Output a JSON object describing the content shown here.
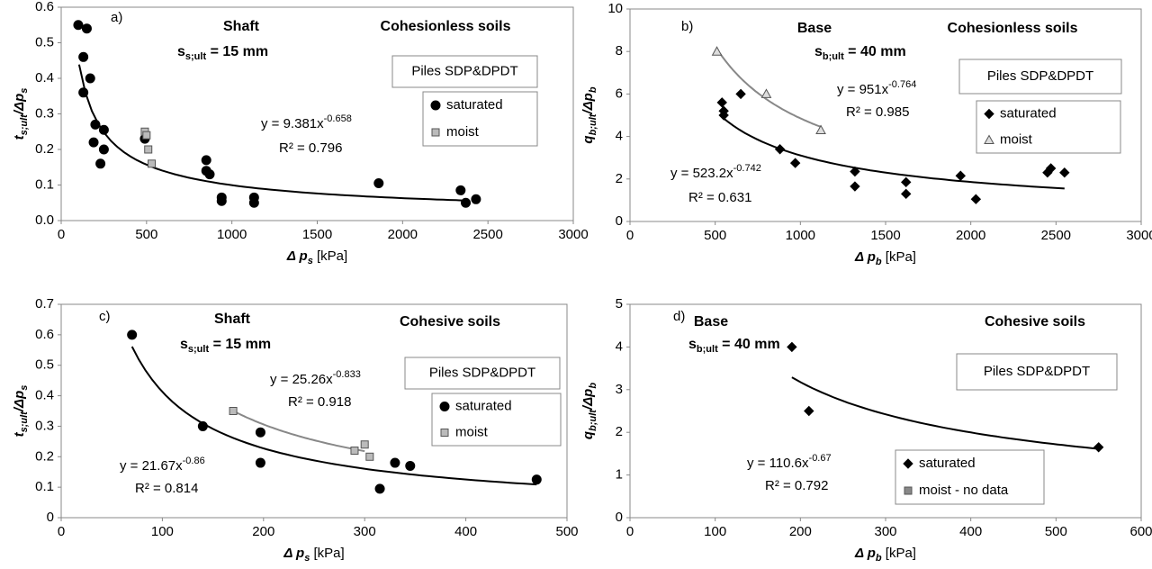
{
  "chart_data": [
    {
      "type": "scatter",
      "panel_label": "a)",
      "title": "Shaft",
      "subtitle": "Cohesionless soils",
      "settlement": [
        {
          "text": "s",
          "sub": false
        },
        {
          "text": "s;ult",
          "sub": true
        },
        {
          "text": " = 15 mm",
          "sub": false
        }
      ],
      "box_label": "Piles SDP&DPDT",
      "xlabel": [
        {
          "text": "Δ p",
          "sub": false,
          "italic": true
        },
        {
          "text": "s",
          "sub": true,
          "italic": true
        },
        {
          "text": " [kPa]",
          "sub": false,
          "italic": false
        }
      ],
      "ylabel": [
        {
          "text": "t",
          "sub": false,
          "italic": true
        },
        {
          "text": "s;ult",
          "sub": true,
          "italic": true
        },
        {
          "text": "/Δp",
          "sub": false,
          "italic": true
        },
        {
          "text": "s",
          "sub": true,
          "italic": true
        }
      ],
      "xlim": [
        0,
        3000
      ],
      "xticks": [
        0,
        500,
        1000,
        1500,
        2000,
        2500,
        3000
      ],
      "ylim": [
        0,
        0.6
      ],
      "yticks": [
        {
          "value": 0,
          "label": "0.0"
        },
        0.1,
        0.2,
        0.3,
        0.4,
        0.5,
        0.6
      ],
      "series": [
        {
          "name": "saturated",
          "color": "#000000",
          "marker": "circle",
          "x": [
            100,
            150,
            130,
            170,
            130,
            200,
            190,
            250,
            250,
            230,
            490,
            850,
            850,
            870,
            940,
            940,
            1130,
            1130,
            1860,
            2340,
            2370,
            2430
          ],
          "values": [
            0.55,
            0.54,
            0.46,
            0.4,
            0.36,
            0.27,
            0.22,
            0.255,
            0.2,
            0.16,
            0.23,
            0.14,
            0.17,
            0.13,
            0.065,
            0.055,
            0.065,
            0.05,
            0.105,
            0.085,
            0.05,
            0.06
          ],
          "fit": {
            "a": 9.381,
            "b": -0.658,
            "xrange": [
              105,
              2350
            ],
            "color": "#000000",
            "equation": "y = 9.381x",
            "exponent": "-0.658",
            "r2": "R² = 0.796"
          }
        },
        {
          "name": "moist",
          "color": "#bbbbbb",
          "marker": "square",
          "x": [
            490,
            500,
            510,
            530
          ],
          "values": [
            0.25,
            0.24,
            0.2,
            0.16
          ]
        }
      ]
    },
    {
      "type": "scatter",
      "panel_label": "b)",
      "title": "Base",
      "subtitle": "Cohesionless soils",
      "settlement": [
        {
          "text": "s",
          "sub": false
        },
        {
          "text": "b;ult",
          "sub": true
        },
        {
          "text": " = 40 mm",
          "sub": false
        }
      ],
      "box_label": "Piles SDP&DPDT",
      "xlabel": [
        {
          "text": "Δ p",
          "sub": false,
          "italic": true
        },
        {
          "text": "b",
          "sub": true,
          "italic": true
        },
        {
          "text": " [kPa]",
          "sub": false,
          "italic": false
        }
      ],
      "ylabel": [
        {
          "text": "q",
          "sub": false,
          "italic": true
        },
        {
          "text": "b;ult",
          "sub": true,
          "italic": true
        },
        {
          "text": "/Δp",
          "sub": false,
          "italic": true
        },
        {
          "text": "b",
          "sub": true,
          "italic": true
        }
      ],
      "xlim": [
        0,
        3000
      ],
      "xticks": [
        0,
        500,
        1000,
        1500,
        2000,
        2500,
        3000
      ],
      "ylim": [
        0,
        10
      ],
      "yticks": [
        0,
        2,
        4,
        6,
        8,
        10
      ],
      "series": [
        {
          "name": "saturated",
          "color": "#000000",
          "marker": "diamond",
          "x": [
            540,
            550,
            550,
            650,
            880,
            970,
            1320,
            1320,
            1620,
            1620,
            1940,
            2030,
            2450,
            2470,
            2550
          ],
          "values": [
            5.6,
            5.2,
            5.0,
            6.0,
            3.4,
            2.75,
            2.35,
            1.65,
            1.85,
            1.3,
            2.15,
            1.05,
            2.3,
            2.5,
            2.3
          ],
          "fit": {
            "a": 523.2,
            "b": -0.742,
            "xrange": [
              540,
              2550
            ],
            "color": "#000000",
            "equation": "y = 523.2x",
            "exponent": "-0.742",
            "r2": "R² = 0.631"
          }
        },
        {
          "name": "moist",
          "color": "#dddddd",
          "marker": "triangle",
          "x": [
            510,
            800,
            1120
          ],
          "values": [
            8.0,
            6.0,
            4.3
          ],
          "fit": {
            "a": 951,
            "b": -0.764,
            "xrange": [
              530,
              1120
            ],
            "color": "#888888",
            "equation": "y = 951x",
            "exponent": "-0.764",
            "r2": "R² = 0.985"
          }
        }
      ]
    },
    {
      "type": "scatter",
      "panel_label": "c)",
      "title": "Shaft",
      "subtitle": "Cohesive soils",
      "settlement": [
        {
          "text": "s",
          "sub": false
        },
        {
          "text": "s;ult",
          "sub": true
        },
        {
          "text": " = 15 mm",
          "sub": false
        }
      ],
      "box_label": "Piles SDP&DPDT",
      "xlabel": [
        {
          "text": "Δ p",
          "sub": false,
          "italic": true
        },
        {
          "text": "s",
          "sub": true,
          "italic": true
        },
        {
          "text": " [kPa]",
          "sub": false,
          "italic": false
        }
      ],
      "ylabel": [
        {
          "text": "t",
          "sub": false,
          "italic": true
        },
        {
          "text": "s;ult",
          "sub": true,
          "italic": true
        },
        {
          "text": "/Δp",
          "sub": false,
          "italic": true
        },
        {
          "text": "s",
          "sub": true,
          "italic": true
        }
      ],
      "xlim": [
        0,
        500
      ],
      "xticks": [
        0,
        100,
        200,
        300,
        400,
        500
      ],
      "ylim": [
        0,
        0.7
      ],
      "yticks": [
        0,
        0.1,
        0.2,
        0.3,
        0.4,
        0.5,
        0.6,
        0.7
      ],
      "series": [
        {
          "name": "saturated",
          "color": "#000000",
          "marker": "circle",
          "x": [
            70,
            140,
            197,
            197,
            315,
            330,
            345,
            470
          ],
          "values": [
            0.6,
            0.3,
            0.28,
            0.18,
            0.095,
            0.18,
            0.17,
            0.125
          ],
          "fit": {
            "a": 21.67,
            "b": -0.86,
            "xrange": [
              70,
              470
            ],
            "color": "#000000",
            "equation": "y = 21.67x",
            "exponent": "-0.86",
            "r2": "R² = 0.814"
          }
        },
        {
          "name": "moist",
          "color": "#bbbbbb",
          "marker": "square",
          "x": [
            170,
            290,
            300,
            305
          ],
          "values": [
            0.35,
            0.22,
            0.24,
            0.2
          ],
          "fit": {
            "a": 25.26,
            "b": -0.833,
            "xrange": [
              170,
              300
            ],
            "color": "#888888",
            "equation": "y = 25.26x",
            "exponent": "-0.833",
            "r2": "R² = 0.918"
          }
        }
      ]
    },
    {
      "type": "scatter",
      "panel_label": "d)",
      "title": "Base",
      "subtitle": "Cohesive soils",
      "settlement": [
        {
          "text": "s",
          "sub": false
        },
        {
          "text": "b;ult",
          "sub": true
        },
        {
          "text": " = 40 mm",
          "sub": false
        }
      ],
      "box_label": "Piles SDP&DPDT",
      "xlabel": [
        {
          "text": "Δ p",
          "sub": false,
          "italic": true
        },
        {
          "text": "b",
          "sub": true,
          "italic": true
        },
        {
          "text": " [kPa]",
          "sub": false,
          "italic": false
        }
      ],
      "ylabel": [
        {
          "text": "q",
          "sub": false,
          "italic": true
        },
        {
          "text": "b;ult",
          "sub": true,
          "italic": true
        },
        {
          "text": "/Δp",
          "sub": false,
          "italic": true
        },
        {
          "text": "b",
          "sub": true,
          "italic": true
        }
      ],
      "xlim": [
        0,
        600
      ],
      "xticks": [
        0,
        100,
        200,
        300,
        400,
        500,
        600
      ],
      "ylim": [
        0,
        5
      ],
      "yticks": [
        0,
        1,
        2,
        3,
        4,
        5
      ],
      "series": [
        {
          "name": "saturated",
          "color": "#000000",
          "marker": "diamond",
          "x": [
            190,
            210,
            550
          ],
          "values": [
            4.0,
            2.5,
            1.65
          ],
          "fit": {
            "a": 110.6,
            "b": -0.67,
            "xrange": [
              190,
              550
            ],
            "color": "#000000",
            "equation": "y = 110.6x",
            "exponent": "-0.67",
            "r2": "R² = 0.792"
          }
        },
        {
          "name": "moist - no data",
          "color": "#888888",
          "marker": "square",
          "x": [],
          "values": []
        }
      ]
    }
  ]
}
